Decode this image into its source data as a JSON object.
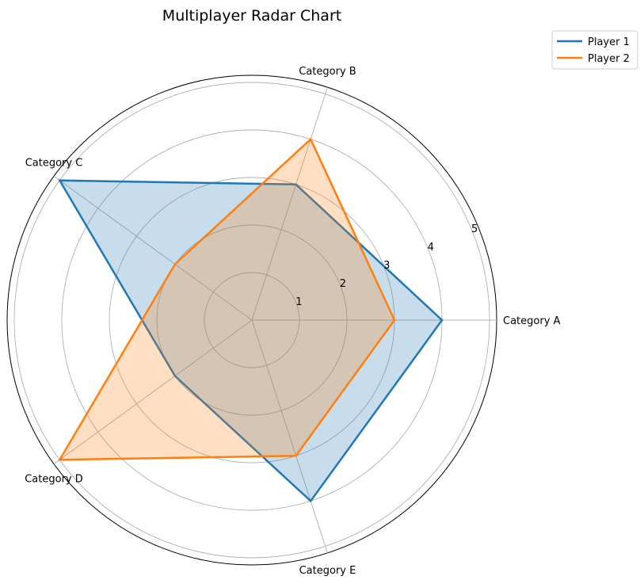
{
  "chart_data": {
    "type": "radar",
    "title": "Multiplayer Radar Chart",
    "categories": [
      "Category A",
      "Category B",
      "Category C",
      "Category D",
      "Category E"
    ],
    "series": [
      {
        "name": "Player 1",
        "values": [
          4,
          3,
          5,
          2,
          4
        ],
        "color": "#1f77b4"
      },
      {
        "name": "Player 2",
        "values": [
          3,
          4,
          2,
          5,
          3
        ],
        "color": "#ff7f0e"
      }
    ],
    "radial_ticks": [
      "1",
      "2",
      "3",
      "4",
      "5"
    ],
    "rlim": [
      0,
      5.15
    ],
    "start_angle_deg": 0,
    "direction": "counterclockwise",
    "grid": true,
    "legend_position": "top-right"
  }
}
